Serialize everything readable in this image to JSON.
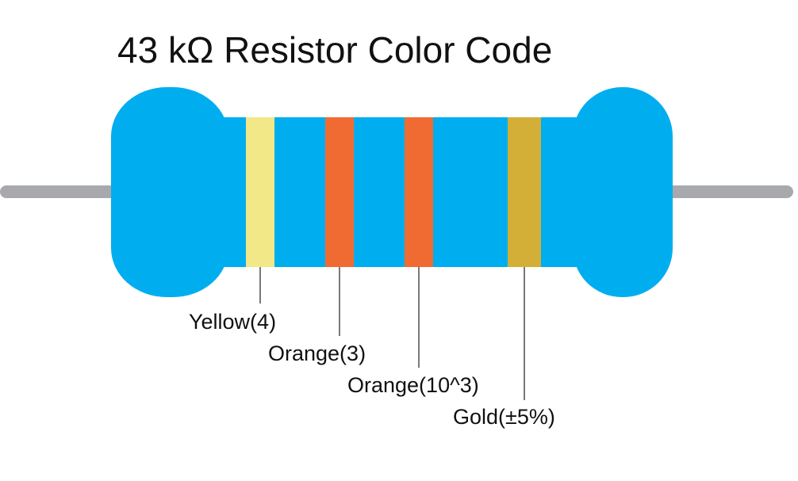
{
  "title": "43 kΩ Resistor Color Code",
  "colors": {
    "body": "#00AEEF",
    "lead": "#A7A9AC",
    "leader_line": "#231F20"
  },
  "bands": [
    {
      "name": "Yellow",
      "color": "#F2E888",
      "label": "Yellow(4)"
    },
    {
      "name": "Orange",
      "color": "#F06B31",
      "label": "Orange(3)"
    },
    {
      "name": "Orange",
      "color": "#F06B31",
      "label": "Orange(10^3)"
    },
    {
      "name": "Gold",
      "color": "#D4AF37",
      "label": "Gold(±5%)"
    }
  ]
}
